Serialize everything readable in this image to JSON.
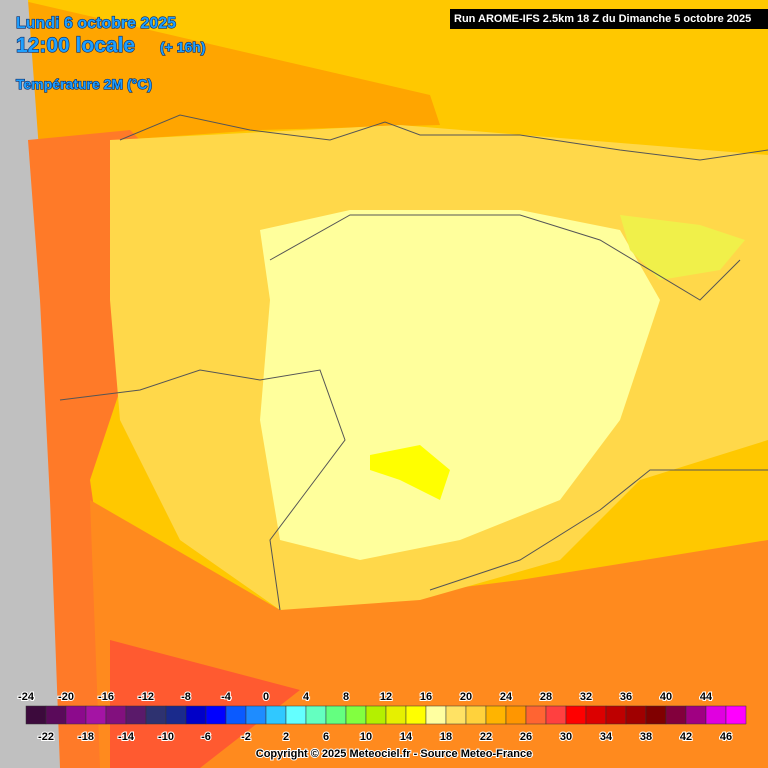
{
  "header": {
    "date": "Lundi 6 octobre 2025",
    "time": "12:00 locale",
    "lead": "(+ 16h)",
    "variable": "Température 2M (°C)"
  },
  "run": "Run AROME-IFS 2.5km 18 Z du Dimanche 5 octobre 2025",
  "legend": {
    "values": [
      -24,
      -22,
      -20,
      -18,
      -16,
      -14,
      -12,
      -10,
      -8,
      -6,
      -4,
      -2,
      0,
      2,
      4,
      6,
      8,
      10,
      12,
      14,
      16,
      18,
      20,
      22,
      24,
      26,
      28,
      30,
      32,
      34,
      36,
      38,
      40,
      42,
      44,
      46
    ],
    "colors": [
      "#3c0a3c",
      "#5a0a5a",
      "#8c0a8c",
      "#a414a4",
      "#82107e",
      "#5a1a6a",
      "#2e3270",
      "#1a2a8c",
      "#0000c8",
      "#0000ff",
      "#0a5aff",
      "#1e8cff",
      "#30c8ff",
      "#64ffff",
      "#64ffc0",
      "#64ff80",
      "#82ff40",
      "#b4f000",
      "#e6f000",
      "#ffff00",
      "#ffffa0",
      "#ffe264",
      "#ffd23c",
      "#ffb400",
      "#ff9600",
      "#ff6432",
      "#ff4040",
      "#ff0000",
      "#dc0000",
      "#be0000",
      "#a00000",
      "#800000",
      "#82003c",
      "#a00082",
      "#e000e0",
      "#ff00ff"
    ]
  },
  "copyright": "Copyright © 2025 Meteociel.fr - Source Meteo-France"
}
